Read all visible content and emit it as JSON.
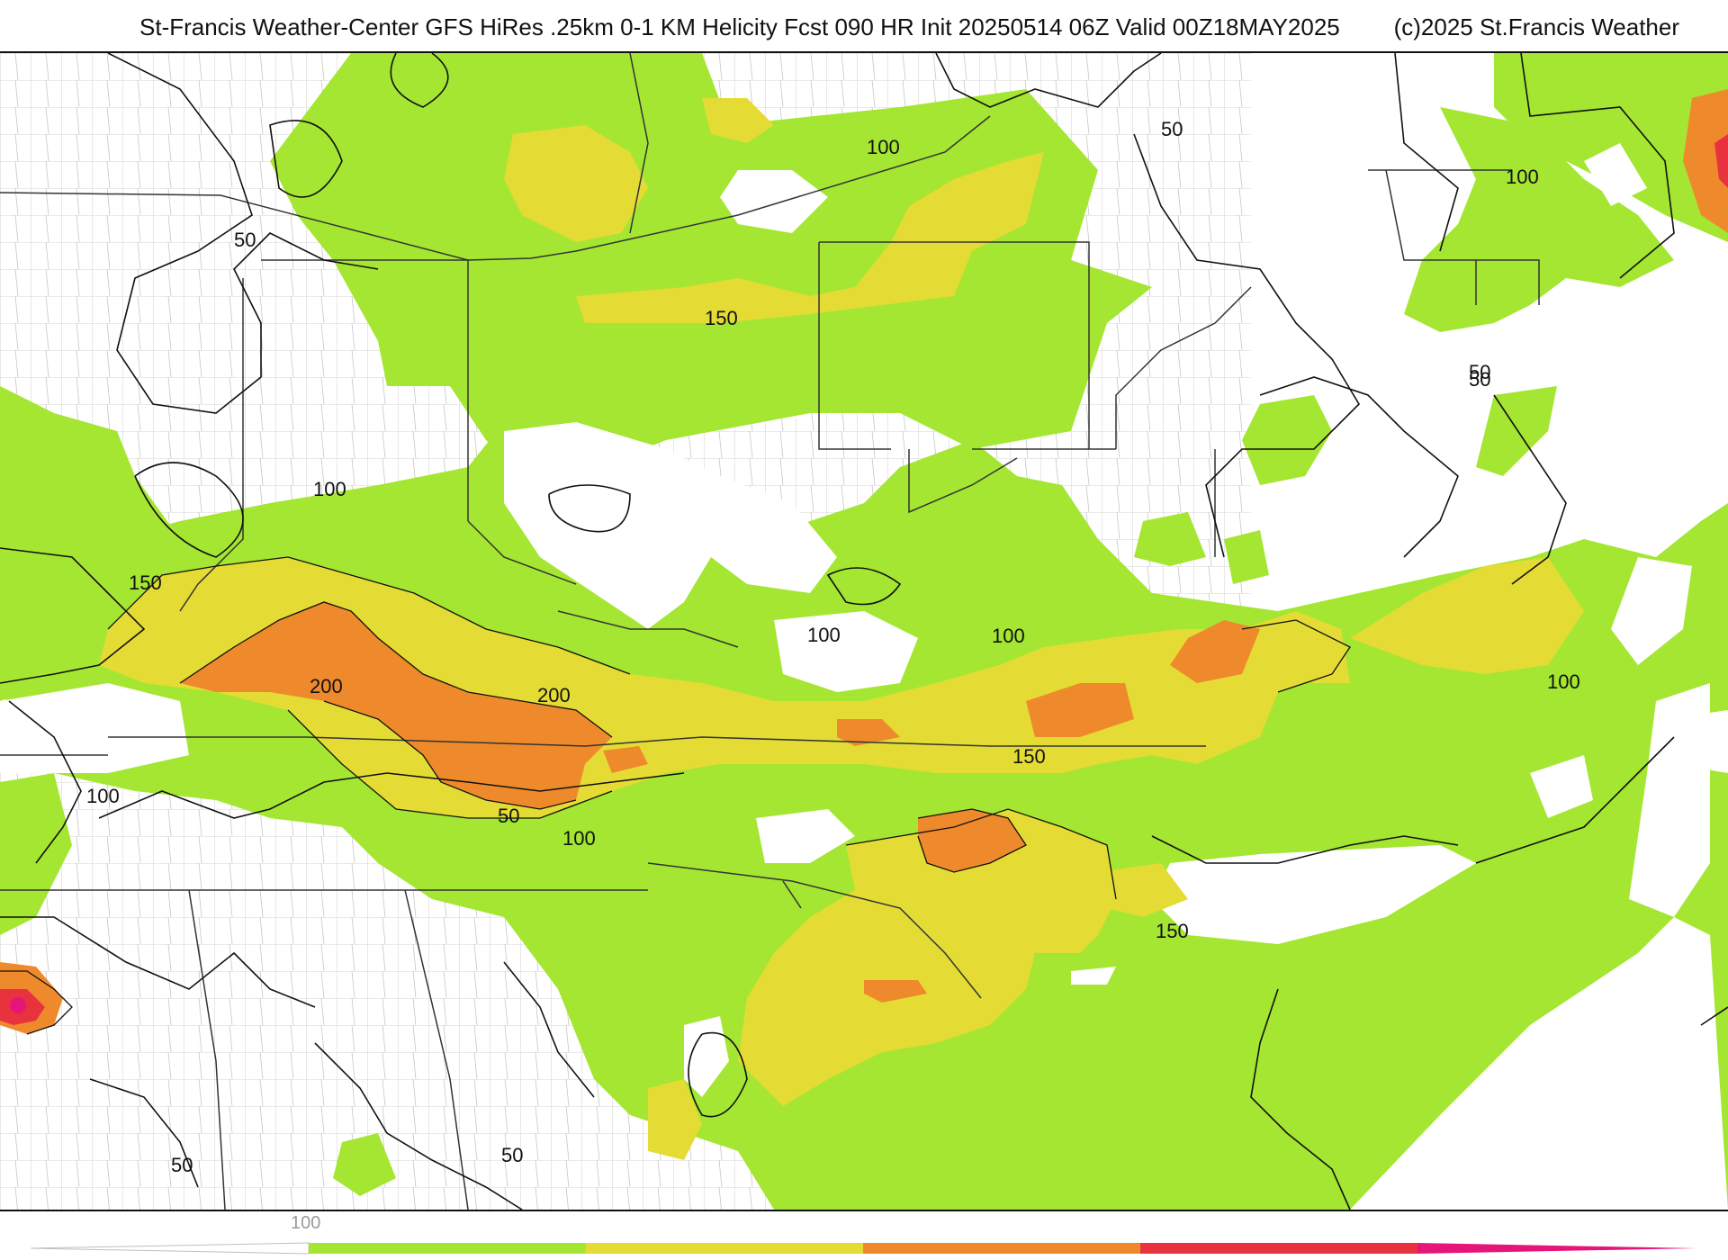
{
  "header": {
    "title": "St-Francis Weather-Center GFS HiRes .25km 0-1 KM Helicity Fcst 090 HR Init 20250514 06Z  Valid 00Z18MAY2025",
    "copyright": "(c)2025 St.Francis Weather"
  },
  "colors": {
    "green": "#a4e632",
    "yellow": "#e4dc34",
    "orange": "#ef8a2c",
    "red": "#e8333e",
    "magenta": "#e5157a",
    "contour": "#111111",
    "boundary": "#333333",
    "county": "#bdbdbd"
  },
  "map": {
    "contour_labels": [
      {
        "id": "l1",
        "text": "50"
      },
      {
        "id": "l2",
        "text": "100"
      },
      {
        "id": "l3",
        "text": "50"
      },
      {
        "id": "l4",
        "text": "100"
      },
      {
        "id": "l5",
        "text": "50"
      },
      {
        "id": "l6",
        "text": "150"
      },
      {
        "id": "l7",
        "text": "50"
      },
      {
        "id": "l8",
        "text": "100"
      },
      {
        "id": "l9",
        "text": "150"
      },
      {
        "id": "l10",
        "text": "200"
      },
      {
        "id": "l11",
        "text": "200"
      },
      {
        "id": "l12",
        "text": "100"
      },
      {
        "id": "l13",
        "text": "100"
      },
      {
        "id": "l14",
        "text": "150"
      },
      {
        "id": "l15",
        "text": "100"
      },
      {
        "id": "l16",
        "text": "100"
      },
      {
        "id": "l17",
        "text": "150"
      },
      {
        "id": "l18",
        "text": "50"
      },
      {
        "id": "l19",
        "text": "100"
      },
      {
        "id": "l20",
        "text": "50"
      },
      {
        "id": "l21",
        "text": "50"
      }
    ]
  },
  "legend": {
    "tick_label": "100",
    "bins": [
      "white",
      "green",
      "yellow",
      "orange",
      "red",
      "magenta"
    ]
  }
}
